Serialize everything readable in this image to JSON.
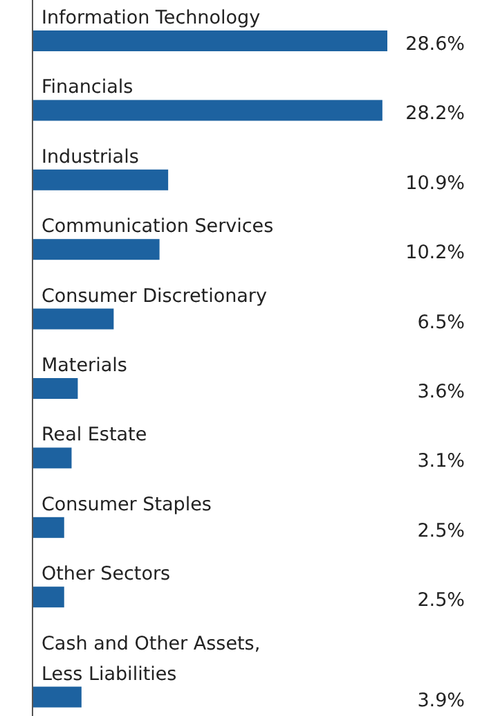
{
  "chart_data": {
    "type": "bar",
    "orientation": "horizontal",
    "data_labels": true,
    "categories": [
      "Information Technology",
      "Financials",
      "Industrials",
      "Communication Services",
      "Consumer Discretionary",
      "Materials",
      "Real Estate",
      "Consumer Staples",
      "Other Sectors",
      "Cash and Other Assets, Less Liabilities"
    ],
    "values": [
      28.6,
      28.2,
      10.9,
      10.2,
      6.5,
      3.6,
      3.1,
      2.5,
      2.5,
      3.9
    ],
    "value_labels": [
      "28.6%",
      "28.2%",
      "10.9%",
      "10.2%",
      "6.5%",
      "3.6%",
      "3.1%",
      "2.5%",
      "2.5%",
      "3.9%"
    ],
    "color": "#1d62a0"
  }
}
